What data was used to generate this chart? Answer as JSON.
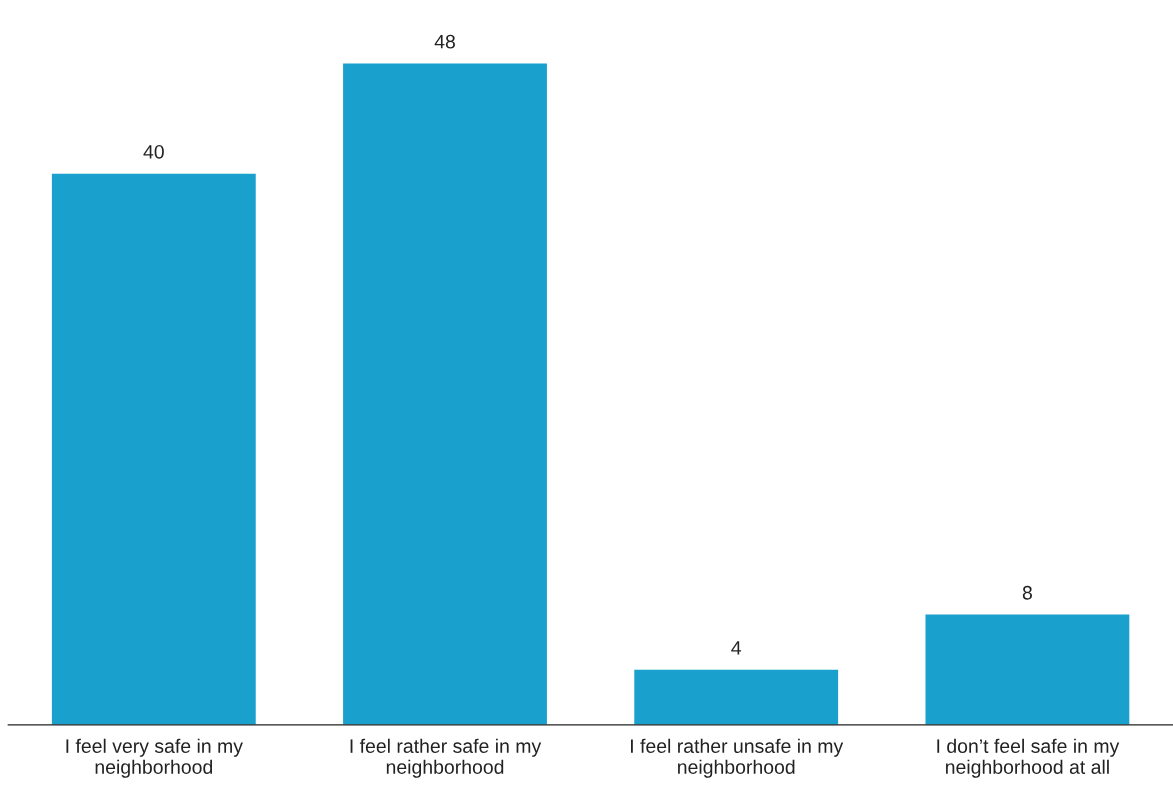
{
  "chart_data": {
    "type": "bar",
    "categories": [
      "I feel very safe in my\nneighborhood",
      "I feel rather safe in my\nneighborhood",
      "I feel rather unsafe in my\nneighborhood",
      "I don’t feel safe in my\nneighborhood at all"
    ],
    "values": [
      40,
      48,
      4,
      8
    ],
    "color": "#1aa0cc",
    "data_labels": true,
    "grid": false,
    "legend": false
  }
}
